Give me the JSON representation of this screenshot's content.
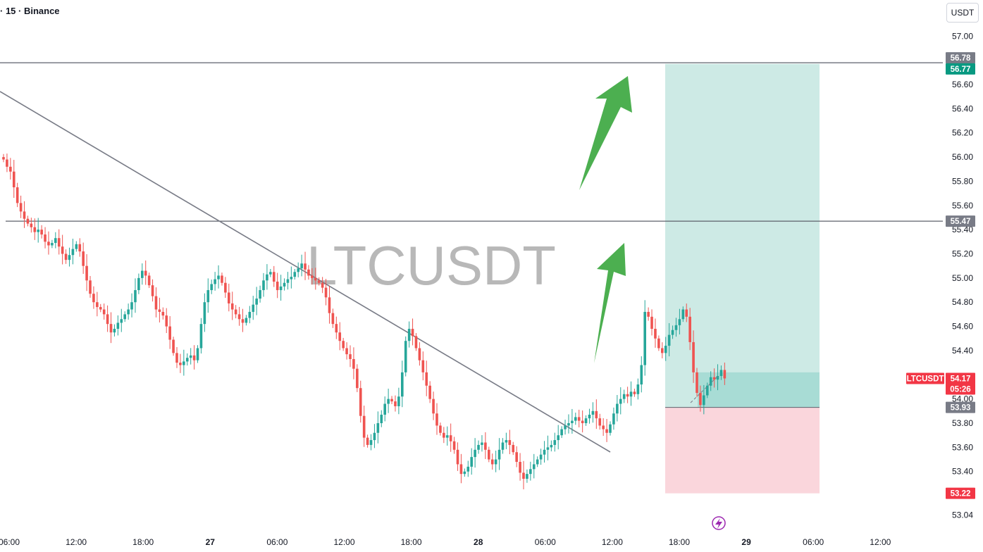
{
  "header": {
    "title": "· 15 · Binance",
    "currency": "USDT",
    "watermark": "LTCUSDT"
  },
  "colors": {
    "up": "#26a69a",
    "down": "#ef5350",
    "target_zone": "#cdeae5",
    "target_zone_near": "#a8dcd5",
    "stop_zone": "#fad6dc",
    "arrow": "#4caf50",
    "trendline": "#787b86",
    "price_tag": "#f23645",
    "entry_tag": "#787b86",
    "target_tag": "#089981",
    "stop_tag": "#f23645"
  },
  "icons": {
    "replay": "lightning-circle-icon"
  },
  "chart_data": {
    "type": "candlestick",
    "symbol": "LTCUSDT",
    "interval": "15",
    "exchange": "Binance",
    "y_ticks": [
      "57.00",
      "56.60",
      "56.40",
      "56.20",
      "56.00",
      "55.80",
      "55.60",
      "55.40",
      "55.20",
      "55.00",
      "54.80",
      "54.60",
      "54.40",
      "54.00",
      "53.80",
      "53.60",
      "53.40",
      "53.04"
    ],
    "y_tick_values": [
      57.0,
      56.6,
      56.4,
      56.2,
      56.0,
      55.8,
      55.6,
      55.4,
      55.2,
      55.0,
      54.8,
      54.6,
      54.4,
      54.0,
      53.8,
      53.6,
      53.4,
      53.04
    ],
    "y_range": [
      53.02,
      57.06
    ],
    "x_ticks": [
      "06:00",
      "12:00",
      "18:00",
      "27",
      "06:00",
      "12:00",
      "18:00",
      "28",
      "06:00",
      "12:00",
      "18:00",
      "29",
      "06:00",
      "12:00"
    ],
    "horizontal_levels": [
      56.78,
      55.47
    ],
    "price_tags": [
      {
        "label": "56.78",
        "value": 56.78,
        "kind": "level"
      },
      {
        "label": "56.77",
        "value": 56.77,
        "kind": "target"
      },
      {
        "label": "55.47",
        "value": 55.47,
        "kind": "level"
      },
      {
        "label": "54.17",
        "value": 54.17,
        "kind": "price"
      },
      {
        "label": "05:26",
        "value": 54.17,
        "kind": "countdown"
      },
      {
        "label": "53.93",
        "value": 53.93,
        "kind": "entry"
      },
      {
        "label": "53.22",
        "value": 53.22,
        "kind": "stop"
      }
    ],
    "symbol_tag": "LTCUSDT",
    "position": {
      "type": "long",
      "entry": 53.93,
      "target": 56.77,
      "stop": 53.22
    },
    "close_price": [
      55.98,
      55.92,
      55.88,
      55.75,
      55.62,
      55.55,
      55.49,
      55.45,
      55.42,
      55.38,
      55.4,
      55.36,
      55.3,
      55.27,
      55.29,
      55.33,
      55.26,
      55.2,
      55.15,
      55.19,
      55.24,
      55.28,
      55.22,
      55.1,
      54.98,
      54.87,
      54.8,
      54.76,
      54.74,
      54.7,
      54.62,
      54.55,
      54.58,
      54.63,
      54.66,
      54.7,
      54.74,
      54.8,
      54.9,
      55.0,
      55.06,
      55.02,
      54.94,
      54.85,
      54.74,
      54.72,
      54.69,
      54.6,
      54.49,
      54.38,
      54.3,
      54.28,
      54.31,
      54.34,
      54.36,
      54.32,
      54.42,
      54.62,
      54.8,
      54.9,
      54.95,
      54.99,
      55.02,
      54.96,
      54.88,
      54.79,
      54.74,
      54.7,
      54.66,
      54.63,
      54.67,
      54.72,
      54.78,
      54.83,
      54.9,
      54.98,
      55.03,
      55.05,
      54.97,
      54.9,
      54.93,
      54.96,
      54.99,
      55.01,
      55.05,
      55.08,
      55.12,
      55.07,
      55.02,
      55.0,
      54.98,
      54.96,
      54.92,
      54.84,
      54.71,
      54.62,
      54.55,
      54.48,
      54.42,
      54.37,
      54.33,
      54.25,
      54.09,
      53.86,
      53.68,
      53.62,
      53.66,
      53.72,
      53.8,
      53.87,
      53.96,
      54.0,
      53.98,
      53.94,
      54.02,
      54.22,
      54.48,
      54.58,
      54.52,
      54.42,
      54.32,
      54.22,
      54.11,
      54.0,
      53.88,
      53.78,
      53.72,
      53.68,
      53.7,
      53.65,
      53.58,
      53.46,
      53.38,
      53.4,
      53.44,
      53.52,
      53.58,
      53.62,
      53.64,
      53.58,
      53.5,
      53.46,
      53.5,
      53.58,
      53.64,
      53.66,
      53.62,
      53.56,
      53.48,
      53.39,
      53.34,
      53.38,
      53.42,
      53.46,
      53.5,
      53.54,
      53.58,
      53.6,
      53.62,
      53.66,
      53.7,
      53.75,
      53.78,
      53.8,
      53.82,
      53.85,
      53.82,
      53.8,
      53.84,
      53.87,
      53.9,
      53.84,
      53.78,
      53.75,
      53.72,
      53.79,
      53.88,
      53.96,
      54.0,
      54.04,
      54.02,
      54.06,
      54.04,
      54.12,
      54.28,
      54.72,
      54.68,
      54.58,
      54.5,
      54.42,
      54.38,
      54.44,
      54.53,
      54.57,
      54.61,
      54.66,
      54.74,
      54.68,
      54.47,
      54.22,
      54.05,
      53.95,
      54.03,
      54.11,
      54.18,
      54.16,
      54.19,
      54.24,
      54.17
    ]
  }
}
